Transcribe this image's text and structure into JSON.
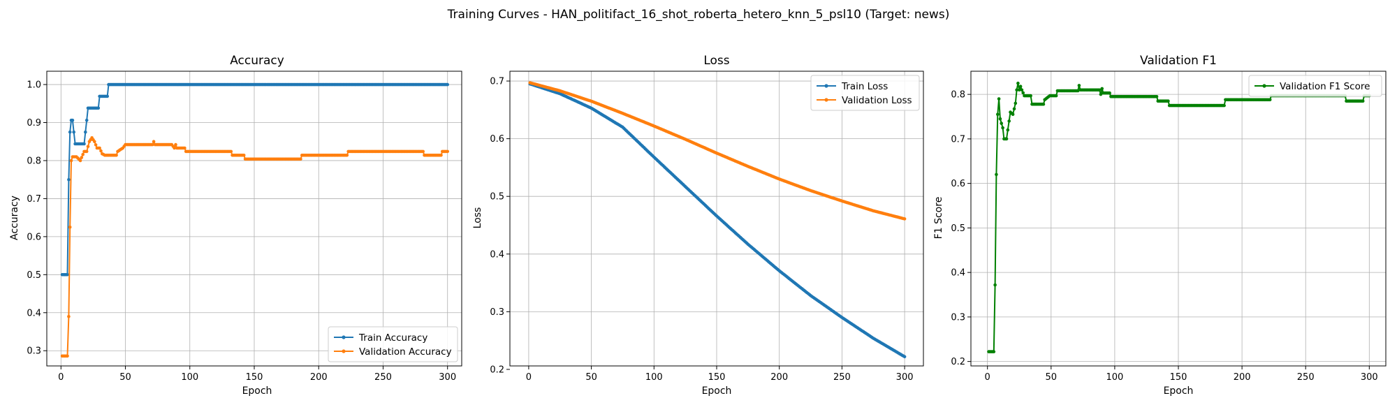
{
  "figure": {
    "title": "Training Curves - HAN_politifact_16_shot_roberta_hetero_knn_5_psl10 (Target: news)"
  },
  "chart_data": [
    {
      "type": "line",
      "title": "Accuracy",
      "xlabel": "Epoch",
      "ylabel": "Accuracy",
      "xlim": [
        -11,
        311
      ],
      "ylim": [
        0.26,
        1.035
      ],
      "xticks": [
        0,
        50,
        100,
        150,
        200,
        250,
        300
      ],
      "yticks": [
        0.3,
        0.4,
        0.5,
        0.6,
        0.7,
        0.8,
        0.9,
        1.0
      ],
      "ytick_labels": [
        "0.3",
        "0.4",
        "0.5",
        "0.6",
        "0.7",
        "0.8",
        "0.9",
        "1.0"
      ],
      "grid": true,
      "legend_position": "lower-right",
      "series": [
        {
          "name": "Train Accuracy",
          "color": "#1f77b4",
          "points": [
            [
              1,
              0.5
            ],
            [
              5,
              0.5
            ],
            [
              6,
              0.75
            ],
            [
              7,
              0.875
            ],
            [
              8,
              0.906
            ],
            [
              9,
              0.906
            ],
            [
              10,
              0.875
            ],
            [
              11,
              0.844
            ],
            [
              18,
              0.844
            ],
            [
              19,
              0.875
            ],
            [
              20,
              0.906
            ],
            [
              21,
              0.938
            ],
            [
              29,
              0.938
            ],
            [
              30,
              0.969
            ],
            [
              36,
              0.969
            ],
            [
              37,
              1.0
            ],
            [
              300,
              1.0
            ]
          ]
        },
        {
          "name": "Validation Accuracy",
          "color": "#ff7f0e",
          "points": [
            [
              1,
              0.286
            ],
            [
              5,
              0.286
            ],
            [
              6,
              0.39
            ],
            [
              7,
              0.625
            ],
            [
              8,
              0.8
            ],
            [
              9,
              0.81
            ],
            [
              12,
              0.81
            ],
            [
              15,
              0.8
            ],
            [
              18,
              0.824
            ],
            [
              20,
              0.824
            ],
            [
              22,
              0.85
            ],
            [
              24,
              0.86
            ],
            [
              26,
              0.85
            ],
            [
              28,
              0.833
            ],
            [
              30,
              0.833
            ],
            [
              32,
              0.818
            ],
            [
              34,
              0.814
            ],
            [
              43,
              0.814
            ],
            [
              44,
              0.824
            ],
            [
              48,
              0.833
            ],
            [
              50,
              0.842
            ],
            [
              71,
              0.842
            ],
            [
              72,
              0.85
            ],
            [
              73,
              0.842
            ],
            [
              86,
              0.842
            ],
            [
              88,
              0.833
            ],
            [
              89,
              0.842
            ],
            [
              90,
              0.833
            ],
            [
              96,
              0.833
            ],
            [
              97,
              0.824
            ],
            [
              132,
              0.824
            ],
            [
              133,
              0.814
            ],
            [
              142,
              0.814
            ],
            [
              143,
              0.804
            ],
            [
              186,
              0.804
            ],
            [
              187,
              0.814
            ],
            [
              222,
              0.814
            ],
            [
              223,
              0.824
            ],
            [
              281,
              0.824
            ],
            [
              282,
              0.814
            ],
            [
              295,
              0.814
            ],
            [
              296,
              0.824
            ],
            [
              300,
              0.824
            ]
          ]
        }
      ]
    },
    {
      "type": "line",
      "title": "Loss",
      "xlabel": "Epoch",
      "ylabel": "Loss",
      "xlim": [
        -15,
        315
      ],
      "ylim": [
        0.206,
        0.717
      ],
      "xticks": [
        0,
        50,
        100,
        150,
        200,
        250,
        300
      ],
      "yticks": [
        0.2,
        0.3,
        0.4,
        0.5,
        0.6,
        0.7
      ],
      "ytick_labels": [
        "0.2",
        "0.3",
        "0.4",
        "0.5",
        "0.6",
        "0.7"
      ],
      "grid": true,
      "legend_position": "top-right",
      "series": [
        {
          "name": "Train Loss",
          "color": "#1f77b4",
          "points": [
            [
              1,
              0.695
            ],
            [
              25,
              0.678
            ],
            [
              50,
              0.653
            ],
            [
              75,
              0.62
            ],
            [
              100,
              0.568
            ],
            [
              125,
              0.517
            ],
            [
              150,
              0.466
            ],
            [
              175,
              0.417
            ],
            [
              200,
              0.371
            ],
            [
              225,
              0.328
            ],
            [
              250,
              0.29
            ],
            [
              275,
              0.254
            ],
            [
              300,
              0.222
            ]
          ]
        },
        {
          "name": "Validation Loss",
          "color": "#ff7f0e",
          "points": [
            [
              1,
              0.697
            ],
            [
              25,
              0.683
            ],
            [
              50,
              0.665
            ],
            [
              75,
              0.644
            ],
            [
              100,
              0.622
            ],
            [
              125,
              0.599
            ],
            [
              150,
              0.575
            ],
            [
              175,
              0.552
            ],
            [
              200,
              0.53
            ],
            [
              225,
              0.51
            ],
            [
              250,
              0.492
            ],
            [
              275,
              0.475
            ],
            [
              300,
              0.461
            ]
          ]
        }
      ]
    },
    {
      "type": "line",
      "title": "Validation F1",
      "xlabel": "Epoch",
      "ylabel": "F1 Score",
      "xlim": [
        -13,
        313
      ],
      "ylim": [
        0.19,
        0.852
      ],
      "xticks": [
        0,
        50,
        100,
        150,
        200,
        250,
        300
      ],
      "yticks": [
        0.2,
        0.3,
        0.4,
        0.5,
        0.6,
        0.7,
        0.8
      ],
      "ytick_labels": [
        "0.2",
        "0.3",
        "0.4",
        "0.5",
        "0.6",
        "0.7",
        "0.8"
      ],
      "grid": true,
      "legend_position": "top-right",
      "series": [
        {
          "name": "Validation F1 Score",
          "color": "#008000",
          "points": [
            [
              1,
              0.222
            ],
            [
              5,
              0.222
            ],
            [
              6,
              0.372
            ],
            [
              7,
              0.62
            ],
            [
              8,
              0.755
            ],
            [
              9,
              0.79
            ],
            [
              10,
              0.745
            ],
            [
              12,
              0.725
            ],
            [
              13,
              0.7
            ],
            [
              15,
              0.7
            ],
            [
              16,
              0.72
            ],
            [
              18,
              0.76
            ],
            [
              20,
              0.755
            ],
            [
              22,
              0.78
            ],
            [
              23,
              0.81
            ],
            [
              24,
              0.825
            ],
            [
              25,
              0.81
            ],
            [
              26,
              0.818
            ],
            [
              27,
              0.81
            ],
            [
              29,
              0.797
            ],
            [
              34,
              0.797
            ],
            [
              35,
              0.778
            ],
            [
              44,
              0.778
            ],
            [
              45,
              0.788
            ],
            [
              49,
              0.797
            ],
            [
              54,
              0.797
            ],
            [
              55,
              0.808
            ],
            [
              71,
              0.808
            ],
            [
              72,
              0.82
            ],
            [
              73,
              0.81
            ],
            [
              88,
              0.81
            ],
            [
              89,
              0.8
            ],
            [
              90,
              0.813
            ],
            [
              91,
              0.803
            ],
            [
              96,
              0.803
            ],
            [
              97,
              0.795
            ],
            [
              133,
              0.795
            ],
            [
              134,
              0.785
            ],
            [
              142,
              0.785
            ],
            [
              143,
              0.775
            ],
            [
              186,
              0.775
            ],
            [
              187,
              0.788
            ],
            [
              222,
              0.788
            ],
            [
              223,
              0.797
            ],
            [
              281,
              0.797
            ],
            [
              282,
              0.785
            ],
            [
              295,
              0.785
            ],
            [
              296,
              0.797
            ],
            [
              300,
              0.797
            ]
          ]
        }
      ]
    }
  ]
}
